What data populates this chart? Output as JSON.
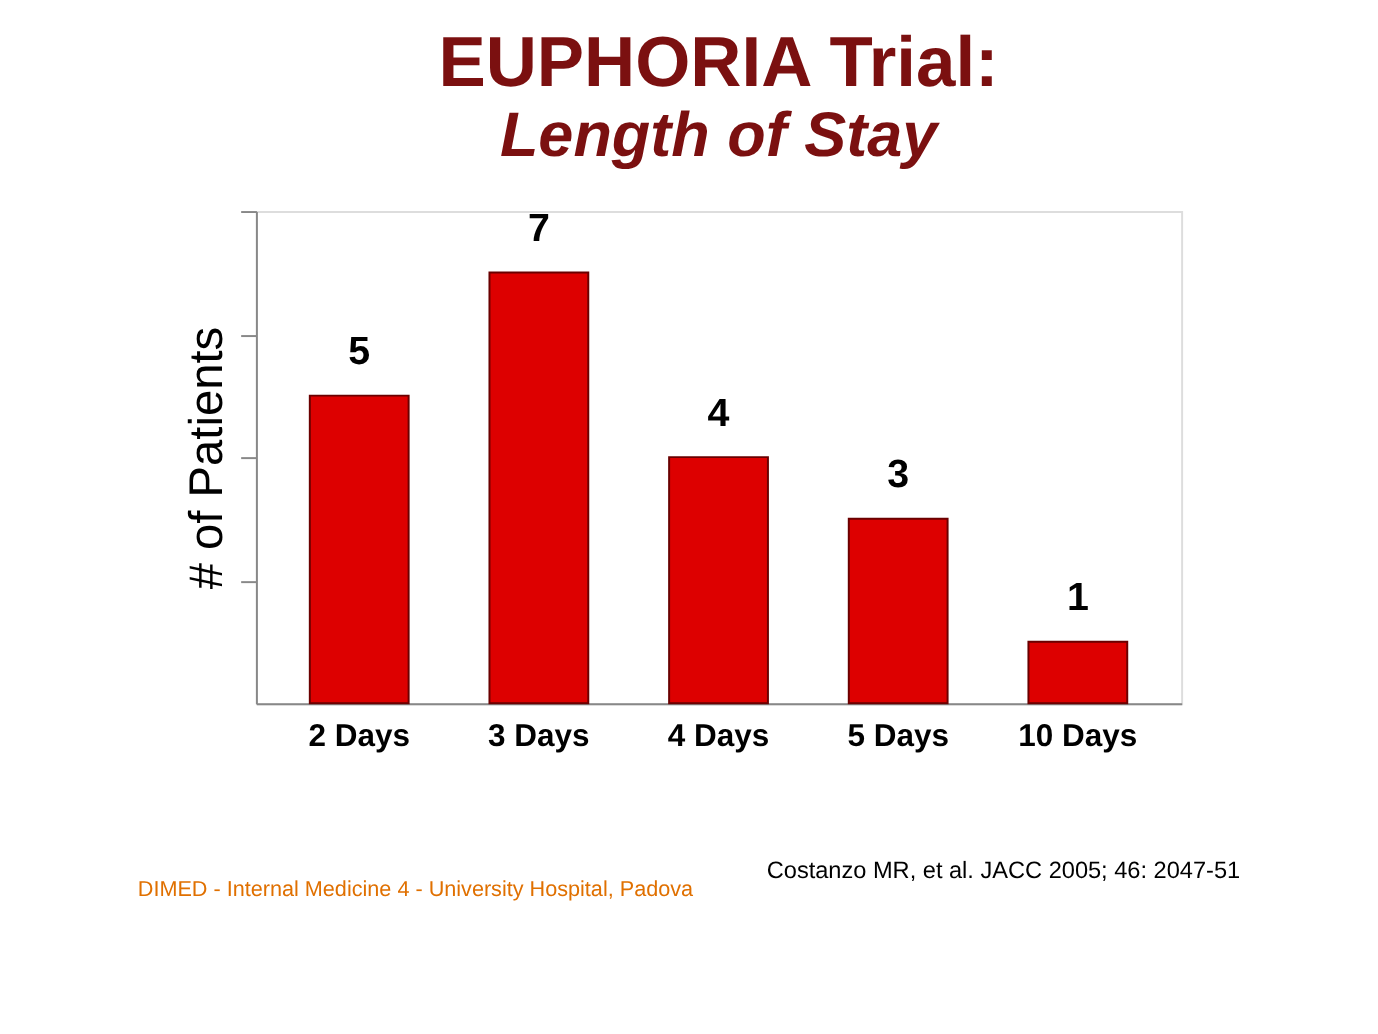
{
  "chart_data": {
    "type": "bar",
    "title": "EUPHORIA Trial:",
    "subtitle": "Length of Stay",
    "ylabel": "# of Patients",
    "categories": [
      "2 Days",
      "3 Days",
      "4  Days",
      "5 Days",
      "10 Days"
    ],
    "values": [
      5,
      7,
      4,
      3,
      1
    ],
    "color": "#dd0000",
    "data_labels": true,
    "ylim": [
      0,
      8
    ],
    "yticks": [
      {
        "value": 2,
        "label": null
      },
      {
        "value": 4,
        "label": null
      },
      {
        "value": 6,
        "label": null
      },
      {
        "value": 8,
        "label": null
      }
    ],
    "tick_labels": "x",
    "grid": false,
    "annotations": [
      "DIMED - Internal Medicine 4 - University Hospital, Padova",
      "Costanzo MR, et al. JACC 2005; 46: 2047-51"
    ]
  }
}
